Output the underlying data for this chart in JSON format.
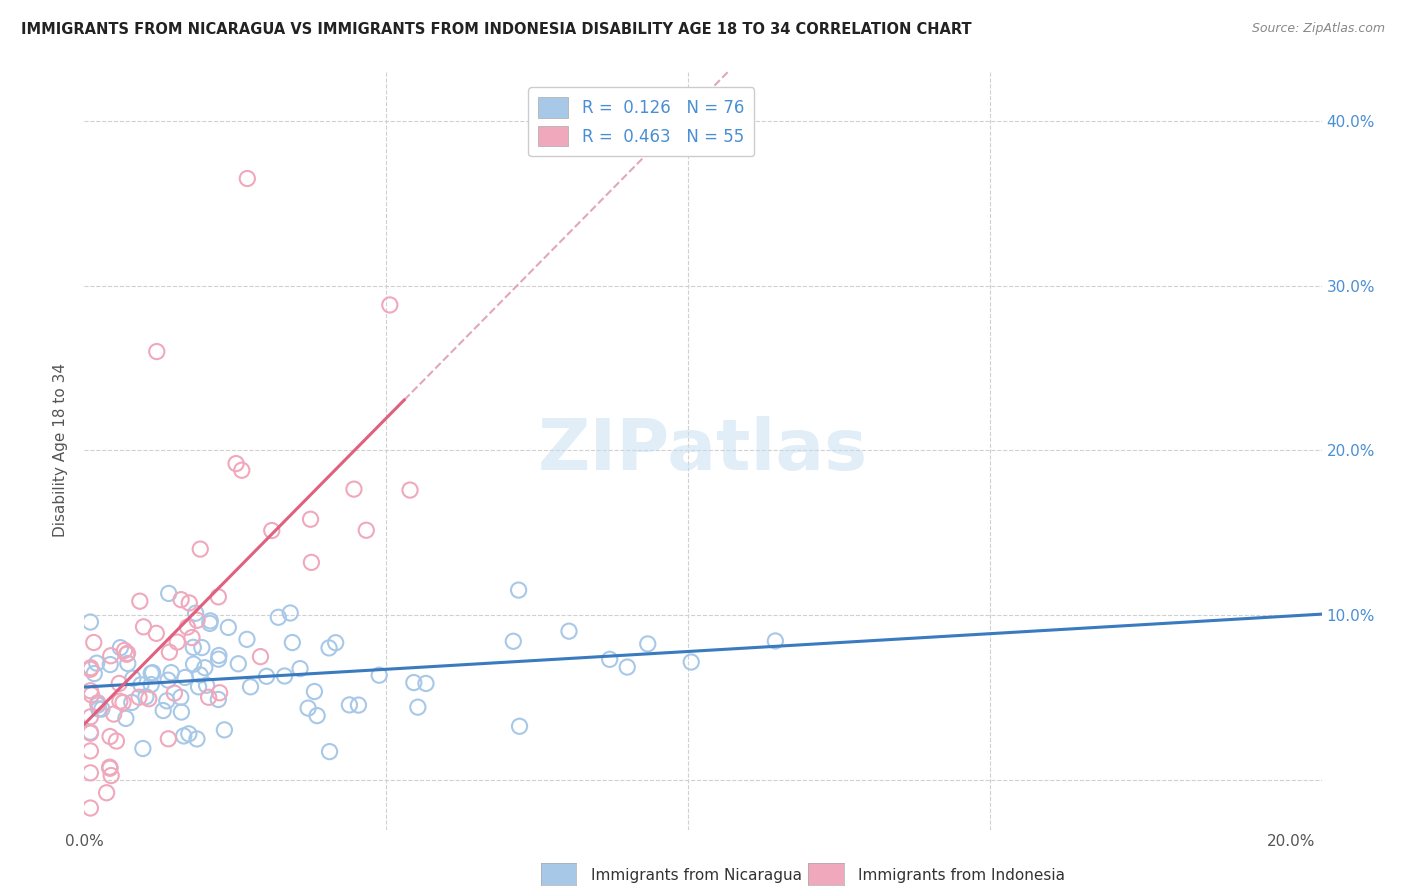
{
  "title": "IMMIGRANTS FROM NICARAGUA VS IMMIGRANTS FROM INDONESIA DISABILITY AGE 18 TO 34 CORRELATION CHART",
  "source": "Source: ZipAtlas.com",
  "ylabel": "Disability Age 18 to 34",
  "xlim": [
    0.0,
    0.205
  ],
  "ylim": [
    -0.03,
    0.43
  ],
  "yticks": [
    0.0,
    0.1,
    0.2,
    0.3,
    0.4
  ],
  "xticks": [
    0.0,
    0.05,
    0.1,
    0.15,
    0.2
  ],
  "nicaragua_color": "#a8c8e8",
  "indonesia_color": "#f0a8bc",
  "nicaragua_line_color": "#3a7abf",
  "indonesia_line_color": "#e06080",
  "indonesia_dash_color": "#e0a8b8",
  "R_nicaragua": 0.126,
  "N_nicaragua": 76,
  "R_indonesia": 0.463,
  "N_indonesia": 55,
  "legend_label_nicaragua": "Immigrants from Nicaragua",
  "legend_label_indonesia": "Immigrants from Indonesia",
  "watermark": "ZIPatlas"
}
